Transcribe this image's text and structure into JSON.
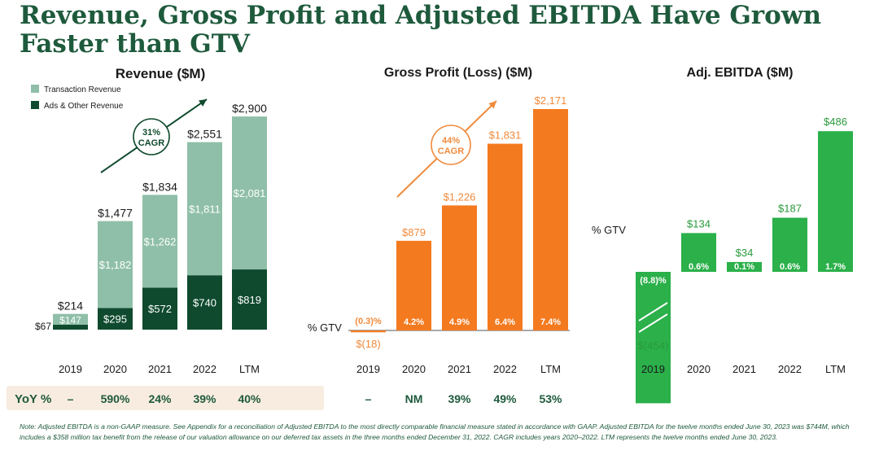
{
  "page": {
    "title": "Revenue, Gross Profit and Adjusted EBITDA Have Grown Faster than GTV",
    "yoy_label": "YoY %",
    "note": "Note: Adjusted EBITDA is a non-GAAP measure. See Appendix for a reconciliation of Adjusted EBITDA to the most directly comparable financial measure stated in accordance with GAAP. Adjusted EBITDA for the twelve months ended June 30, 2023 was $744M, which includes a $358 million tax benefit from the release of our valuation allowance on our deferred tax assets in the three months ended December 31, 2022. CAGR includes years 2020–2022. LTM represents the twelve months ended June 30, 2023."
  },
  "colors": {
    "title_green": "#1e5a3c",
    "transaction_green": "#8fbfa8",
    "ads_green": "#0f4a2e",
    "gross_profit_orange": "#f47a1f",
    "ebitda_green": "#2bb04a",
    "yoy_band": "#f8ece0",
    "label_orange": "#f08a3c",
    "label_green": "#2a9a3c"
  },
  "chart_data": [
    {
      "type": "bar",
      "stacked": true,
      "title": "Revenue ($M)",
      "categories": [
        "2019",
        "2020",
        "2021",
        "2022",
        "LTM"
      ],
      "series": [
        {
          "name": "Ads & Other Revenue",
          "values": [
            67,
            295,
            572,
            740,
            819
          ],
          "labels": [
            "$67",
            "$295",
            "$572",
            "$740",
            "$819"
          ]
        },
        {
          "name": "Transaction Revenue",
          "values": [
            147,
            1182,
            1262,
            1811,
            2081
          ],
          "labels": [
            "$147",
            "$1,182",
            "$1,262",
            "$1,811",
            "$2,081"
          ]
        }
      ],
      "totals": [
        "$214",
        "$1,477",
        "$1,834",
        "$2,551",
        "$2,900"
      ],
      "legend": "top-left",
      "annotation": "31% CAGR",
      "yoy": [
        "–",
        "590%",
        "24%",
        "39%",
        "40%"
      ]
    },
    {
      "type": "bar",
      "title": "Gross Profit (Loss) ($M)",
      "categories": [
        "2019",
        "2020",
        "2021",
        "2022",
        "LTM"
      ],
      "values": [
        -18,
        879,
        1226,
        1831,
        2171
      ],
      "value_labels": [
        "$(18)",
        "$879",
        "$1,226",
        "$1,831",
        "$2,171"
      ],
      "pct_gtv": [
        "(0.3)%",
        "4.2%",
        "4.9%",
        "6.4%",
        "7.4%"
      ],
      "pct_gtv_label": "% GTV",
      "annotation": "44% CAGR",
      "yoy": [
        "–",
        "NM",
        "39%",
        "49%",
        "53%"
      ]
    },
    {
      "type": "bar",
      "title": "Adj. EBITDA ($M)",
      "categories": [
        "2019",
        "2020",
        "2021",
        "2022",
        "LTM"
      ],
      "values": [
        -454,
        134,
        34,
        187,
        486
      ],
      "value_labels": [
        "$(454)",
        "$134",
        "$34",
        "$187",
        "$486"
      ],
      "pct_gtv": [
        "(8.8)%",
        "0.6%",
        "0.1%",
        "0.6%",
        "1.7%"
      ],
      "pct_gtv_label": "% GTV"
    }
  ]
}
